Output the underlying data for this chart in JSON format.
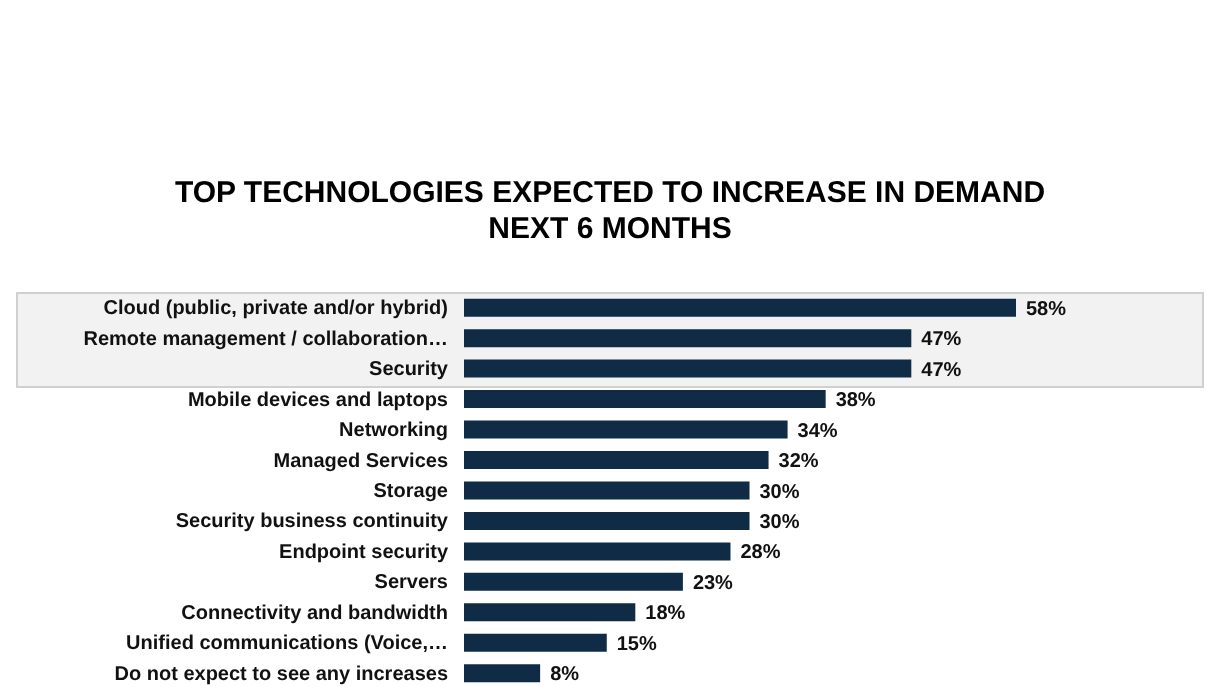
{
  "chart_data": {
    "type": "bar",
    "orientation": "horizontal",
    "title": "TOP TECHNOLOGIES EXPECTED TO INCREASE IN DEMAND\nNEXT 6 MONTHS",
    "categories": [
      "Cloud (public, private and/or hybrid)",
      "Remote management / collaboration…",
      "Security",
      "Mobile devices and laptops",
      "Networking",
      "Managed Services",
      "Storage",
      "Security business continuity",
      "Endpoint security",
      "Servers",
      "Connectivity and bandwidth",
      "Unified communications (Voice,…",
      "Do not expect to see any increases"
    ],
    "values": [
      58,
      47,
      47,
      38,
      34,
      32,
      30,
      30,
      28,
      23,
      18,
      15,
      8
    ],
    "value_labels": [
      "58%",
      "47%",
      "47%",
      "38%",
      "34%",
      "32%",
      "30%",
      "30%",
      "28%",
      "23%",
      "18%",
      "15%",
      "8%"
    ],
    "color": "#0f2b46",
    "bands": [
      {
        "axis": "y",
        "from": "Cloud (public, private and/or hybrid)",
        "to": "Security",
        "color": "#f2f2f2"
      }
    ]
  }
}
